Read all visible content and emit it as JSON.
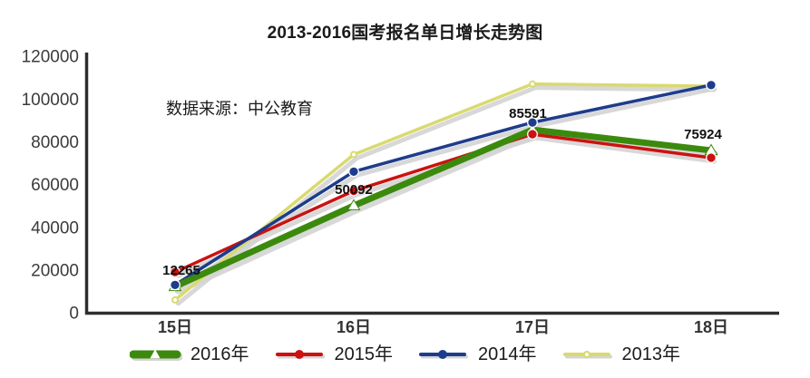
{
  "header": {
    "title": "2013-2016国考报名单日增长走势图"
  },
  "chart_data": {
    "type": "line",
    "title": "2013-2016国考报名单日增长走势图",
    "source_note": "数据来源：中公教育",
    "categories": [
      "15日",
      "16日",
      "17日",
      "18日"
    ],
    "xlabel": "",
    "ylabel": "",
    "ylim": [
      0,
      120000
    ],
    "y_ticks": [
      0,
      20000,
      40000,
      60000,
      80000,
      100000,
      120000
    ],
    "grid": false,
    "legend_position": "bottom",
    "series": [
      {
        "name": "2016年",
        "color": "#3b8a0e",
        "marker": "triangle-open",
        "line_width": 7,
        "values": [
          12265,
          50092,
          85591,
          75924
        ],
        "data_labels": [
          "12265",
          "50092",
          "85591",
          "75924"
        ]
      },
      {
        "name": "2015年",
        "color": "#cc1111",
        "marker": "circle",
        "line_width": 3.5,
        "values": [
          19000,
          57000,
          83500,
          72500
        ]
      },
      {
        "name": "2014年",
        "color": "#1e3c8c",
        "marker": "circle",
        "line_width": 3.5,
        "values": [
          13000,
          66000,
          89000,
          106500
        ]
      },
      {
        "name": "2013年",
        "color": "#d9da6f",
        "marker": "circle-open",
        "line_width": 3.5,
        "values": [
          6000,
          74000,
          107000,
          106000
        ]
      }
    ],
    "colors": {
      "axis": "#2e2e2e",
      "tick_text": "#3b3b3b",
      "label_text": "#111111",
      "shadow": "#d4d4d4"
    }
  }
}
